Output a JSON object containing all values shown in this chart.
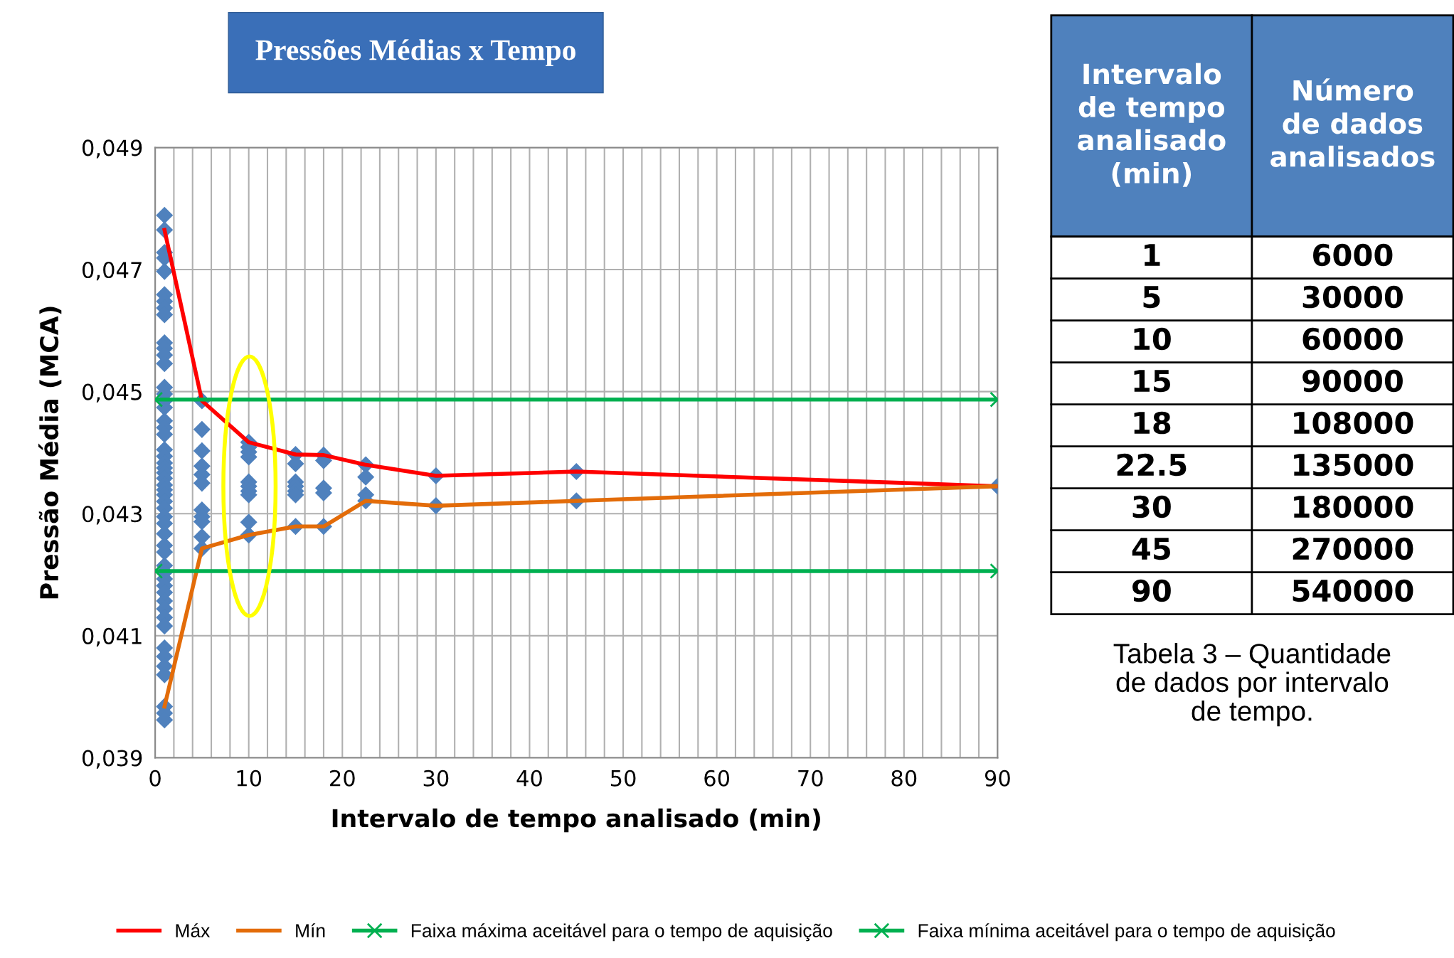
{
  "chart_data": [
    {
      "type": "scatter",
      "title": "Pressões Médias x Tempo",
      "xlabel": "Intervalo de tempo analisado (min)",
      "ylabel": "Pressão Média (MCA)",
      "xlim": [
        0,
        90
      ],
      "ylim": [
        0.039,
        0.049
      ],
      "xticks": [
        0,
        {
          "value": 2,
          "label": null
        },
        {
          "value": 4,
          "label": null
        },
        {
          "value": 6,
          "label": null
        },
        {
          "value": 8,
          "label": null
        },
        10,
        {
          "value": 12,
          "label": null
        },
        {
          "value": 14,
          "label": null
        },
        {
          "value": 16,
          "label": null
        },
        {
          "value": 18,
          "label": null
        },
        20,
        {
          "value": 22,
          "label": null
        },
        {
          "value": 24,
          "label": null
        },
        {
          "value": 26,
          "label": null
        },
        {
          "value": 28,
          "label": null
        },
        30,
        {
          "value": 32,
          "label": null
        },
        {
          "value": 34,
          "label": null
        },
        {
          "value": 36,
          "label": null
        },
        {
          "value": 38,
          "label": null
        },
        40,
        {
          "value": 42,
          "label": null
        },
        {
          "value": 44,
          "label": null
        },
        {
          "value": 46,
          "label": null
        },
        {
          "value": 48,
          "label": null
        },
        50,
        {
          "value": 52,
          "label": null
        },
        {
          "value": 54,
          "label": null
        },
        {
          "value": 56,
          "label": null
        },
        {
          "value": 58,
          "label": null
        },
        60,
        {
          "value": 62,
          "label": null
        },
        {
          "value": 64,
          "label": null
        },
        {
          "value": 66,
          "label": null
        },
        {
          "value": 68,
          "label": null
        },
        70,
        {
          "value": 72,
          "label": null
        },
        {
          "value": 74,
          "label": null
        },
        {
          "value": 76,
          "label": null
        },
        {
          "value": 78,
          "label": null
        },
        80,
        {
          "value": 82,
          "label": null
        },
        {
          "value": 84,
          "label": null
        },
        {
          "value": 86,
          "label": null
        },
        {
          "value": 88,
          "label": null
        },
        90
      ],
      "yticks": [
        {
          "value": 0.039,
          "label": "0,039"
        },
        {
          "value": 0.041,
          "label": "0,041"
        },
        {
          "value": 0.043,
          "label": "0,043"
        },
        {
          "value": 0.045,
          "label": "0,045"
        },
        {
          "value": 0.047,
          "label": "0,047"
        },
        {
          "value": 0.049,
          "label": "0,049"
        }
      ],
      "grid": true,
      "legend": "bottom",
      "series": [
        {
          "type": "scatter",
          "marker": "diamond",
          "color": "#4f81bd",
          "x": [
            1,
            1,
            1,
            1,
            1,
            1,
            1,
            1,
            1,
            1,
            1,
            1,
            1,
            1,
            1,
            1,
            1,
            1,
            1,
            1,
            1,
            1,
            1,
            1,
            1,
            1,
            1,
            1,
            1,
            1,
            1,
            1,
            1,
            1,
            1,
            1,
            1,
            1,
            1,
            1,
            1,
            1,
            1,
            1,
            1,
            1,
            1,
            1,
            1,
            1,
            1,
            1,
            5,
            5,
            5,
            5,
            5,
            5,
            5,
            5,
            5,
            5,
            5,
            10,
            10,
            10,
            10,
            10,
            10,
            10,
            10,
            10,
            10,
            15,
            15,
            15,
            15,
            15,
            15,
            15,
            18,
            18,
            18,
            18,
            18,
            22.5,
            22.5,
            22.5,
            22.5,
            30,
            30,
            45,
            45,
            90
          ],
          "values": [
            0.04789,
            0.04765,
            0.04728,
            0.04719,
            0.04697,
            0.04659,
            0.04648,
            0.04637,
            0.04626,
            0.0458,
            0.04571,
            0.0456,
            0.04546,
            0.04507,
            0.04496,
            0.04485,
            0.04474,
            0.04452,
            0.04441,
            0.0443,
            0.04405,
            0.04394,
            0.04383,
            0.04375,
            0.04367,
            0.04358,
            0.04347,
            0.04339,
            0.04331,
            0.0432,
            0.04309,
            0.04295,
            0.04284,
            0.04267,
            0.04248,
            0.04237,
            0.04215,
            0.04204,
            0.04193,
            0.04182,
            0.04171,
            0.04157,
            0.04144,
            0.0413,
            0.04116,
            0.0408,
            0.04066,
            0.0405,
            0.04036,
            0.03984,
            0.03973,
            0.03962,
            0.04485,
            0.04438,
            0.04403,
            0.04378,
            0.04364,
            0.0435,
            0.04306,
            0.04295,
            0.04287,
            0.04262,
            0.04243,
            0.04417,
            0.04409,
            0.04401,
            0.04393,
            0.04352,
            0.04345,
            0.04337,
            0.04331,
            0.04286,
            0.04265,
            0.04397,
            0.04382,
            0.04352,
            0.04345,
            0.04337,
            0.04331,
            0.04279,
            0.04396,
            0.04387,
            0.04342,
            0.04334,
            0.04279,
            0.0438,
            0.0436,
            0.04331,
            0.04321,
            0.04362,
            0.04313,
            0.04369,
            0.04321,
            0.04345
          ]
        },
        {
          "type": "line",
          "name": "Máx",
          "color": "#ff0000",
          "marker": "none",
          "x": [
            1,
            5,
            10,
            15,
            18,
            22.5,
            30,
            45,
            90
          ],
          "values": [
            0.04765,
            0.04485,
            0.04417,
            0.04397,
            0.04396,
            0.0438,
            0.04362,
            0.04369,
            0.04345
          ]
        },
        {
          "type": "line",
          "name": "Mín",
          "color": "#e36c09",
          "marker": "none",
          "x": [
            1,
            5,
            10,
            15,
            18,
            22.5,
            30,
            45,
            90
          ],
          "values": [
            0.03984,
            0.04243,
            0.04265,
            0.04279,
            0.04279,
            0.04321,
            0.04313,
            0.04321,
            0.04345
          ]
        },
        {
          "type": "line",
          "name": "Faixa máxima aceitável para o tempo de aquisição",
          "color": "#00b050",
          "marker": "cross",
          "x": [
            0,
            90
          ],
          "values": [
            0.04487,
            0.04487
          ]
        },
        {
          "type": "line",
          "name": "Faixa mínima aceitável para o tempo de aquisição",
          "color": "#00b050",
          "marker": "cross",
          "x": [
            0,
            90
          ],
          "values": [
            0.04206,
            0.04206
          ]
        }
      ]
    },
    {
      "type": "other",
      "annotations": [
        "Intervalo\nde tempo\nanalisado\n(min)",
        "Número\nde dados\nanalisados",
        "1",
        "6000",
        "5",
        "30000",
        "10",
        "60000",
        "15",
        "90000",
        "18",
        "108000",
        "22.5",
        "135000",
        "30",
        "180000",
        "45",
        "270000",
        "90",
        "540000",
        "Tabela 3 – Quantidade\nde dados por intervalo\nde tempo."
      ]
    }
  ]
}
